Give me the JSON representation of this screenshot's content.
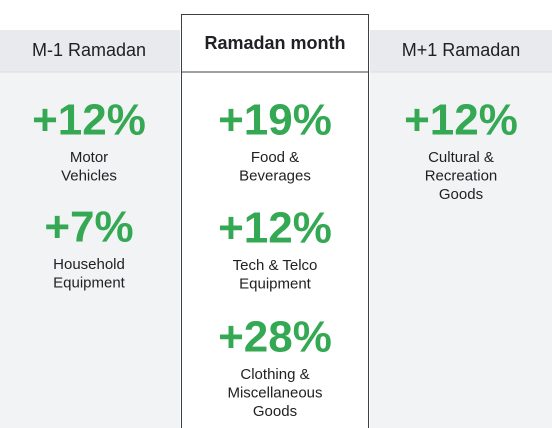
{
  "columns": [
    {
      "header": "M-1 Ramadan",
      "items": [
        {
          "value": "+12%",
          "label": [
            "Motor",
            "Vehicles"
          ]
        },
        {
          "value": "+7%",
          "label": [
            "Household",
            "Equipment"
          ]
        }
      ]
    },
    {
      "header": "Ramadan month",
      "items": [
        {
          "value": "+19%",
          "label": [
            "Food &",
            "Beverages"
          ]
        },
        {
          "value": "+12%",
          "label": [
            "Tech & Telco",
            "Equipment"
          ]
        },
        {
          "value": "+28%",
          "label": [
            "Clothing &",
            "Miscellaneous",
            "Goods"
          ]
        }
      ]
    },
    {
      "header": "M+1 Ramadan",
      "items": [
        {
          "value": "+12%",
          "label": [
            "Cultural &",
            "Recreation",
            "Goods"
          ]
        }
      ]
    }
  ]
}
